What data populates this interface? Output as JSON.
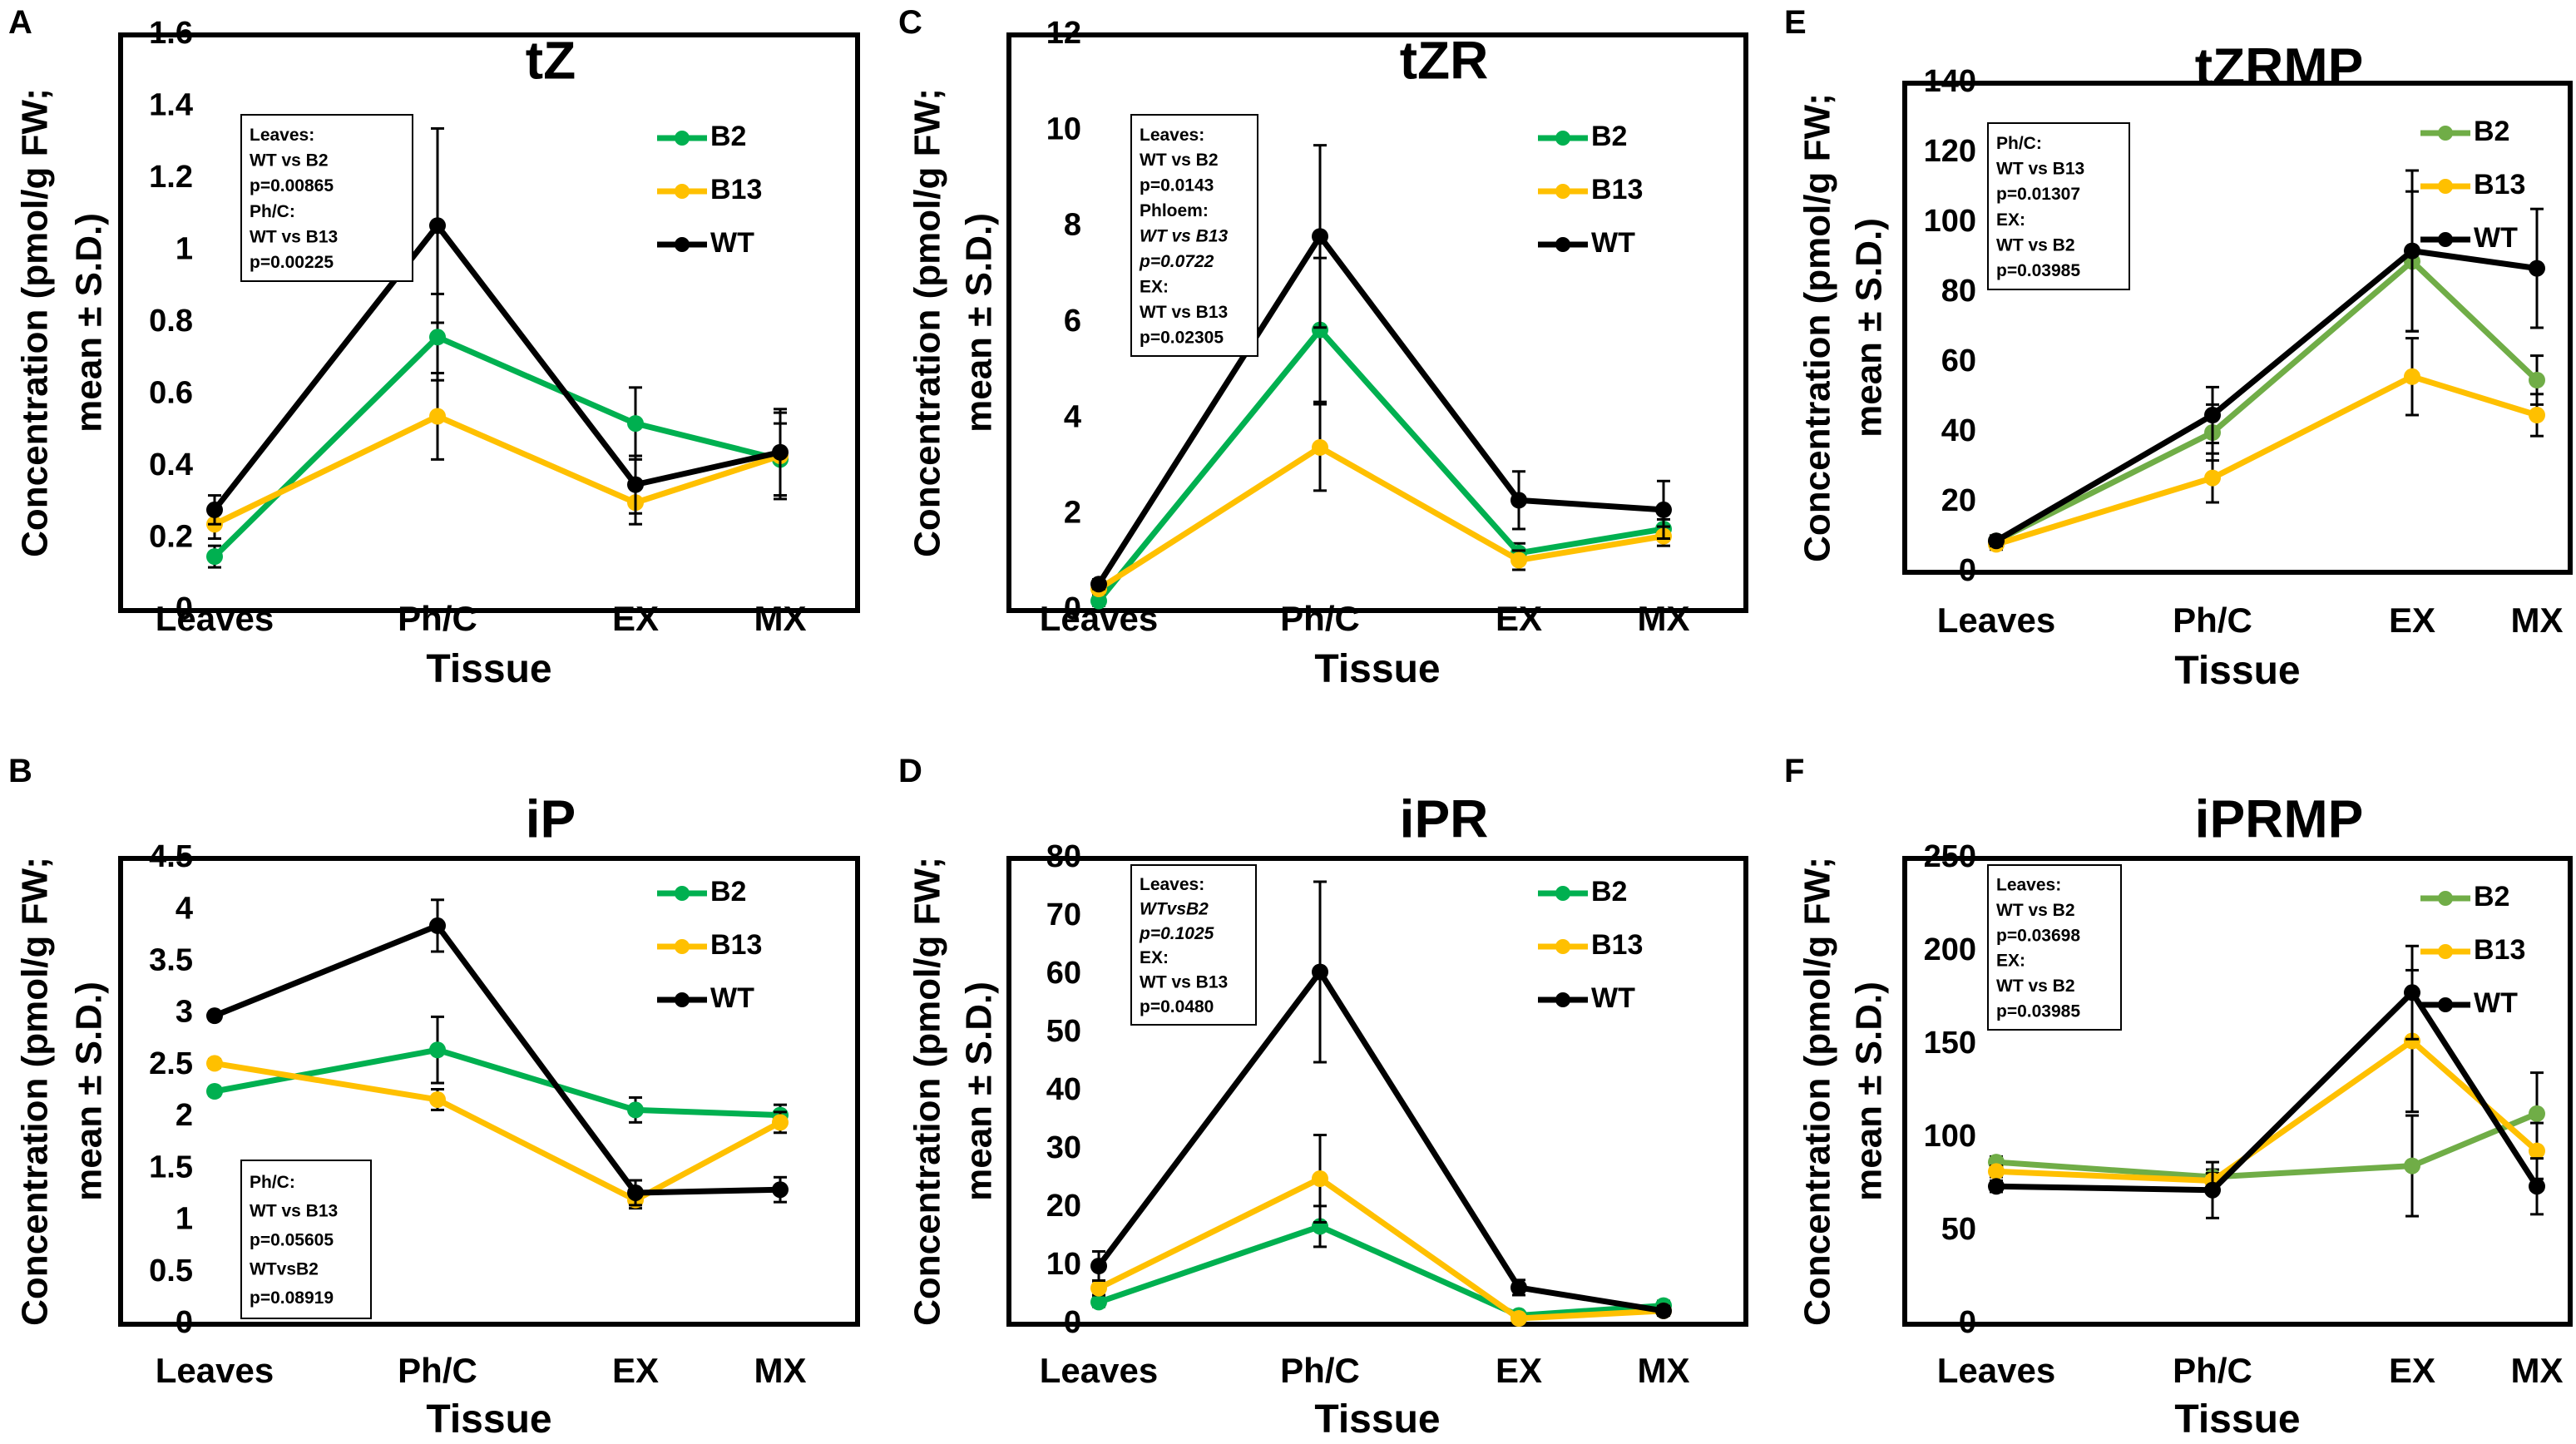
{
  "figure": {
    "colors": {
      "B2": "#00b050",
      "B13": "#ffc000",
      "WT": "#000000",
      "B2_alt": "#70ad47"
    }
  },
  "chart_data": [
    {
      "panel": "A",
      "type": "line",
      "title": "tZ",
      "xlabel": "Tissue",
      "ylabel_lines": [
        "Concentration (pmol/g FW;",
        "mean ± S.D.)"
      ],
      "categories": [
        "Leaves",
        "Ph/C",
        "EX",
        "MX"
      ],
      "ylim": [
        0,
        1.6
      ],
      "yticks": [
        0,
        0.2,
        0.4,
        0.6,
        0.8,
        1,
        1.2,
        1.4,
        1.6
      ],
      "ytick_labels": [
        "0",
        "0.2",
        "0.4",
        "0.6",
        "0.8",
        "1",
        "1.2",
        "1.4",
        "1.6"
      ],
      "series": [
        {
          "name": "B2",
          "color": "#00b050",
          "values": [
            0.15,
            0.76,
            0.52,
            0.42
          ],
          "errors": [
            0.03,
            0.12,
            0.1,
            0.1
          ]
        },
        {
          "name": "B13",
          "color": "#ffc000",
          "values": [
            0.24,
            0.54,
            0.3,
            0.43
          ],
          "errors": [
            0.04,
            0.12,
            0.06,
            0.12
          ]
        },
        {
          "name": "WT",
          "color": "#000000",
          "values": [
            0.28,
            1.07,
            0.35,
            0.44
          ],
          "errors": [
            0.04,
            0.27,
            0.08,
            0.12
          ]
        }
      ],
      "legend": [
        "B2",
        "B13",
        "WT"
      ],
      "legend_position": "top-right",
      "stats_box": [
        "Leaves:",
        "WT vs B2",
        "p=0.00865",
        "Ph/C:",
        "WT vs B13",
        "p=0.00225"
      ],
      "stats_italic": [],
      "stats_position": "top-left"
    },
    {
      "panel": "B",
      "type": "line",
      "title": "iP",
      "xlabel": "Tissue",
      "ylabel_lines": [
        "Concentration (pmol/g FW;",
        "mean ± S.D.)"
      ],
      "categories": [
        "Leaves",
        "Ph/C",
        "EX",
        "MX"
      ],
      "ylim": [
        0,
        4.5
      ],
      "yticks": [
        0,
        0.5,
        1,
        1.5,
        2,
        2.5,
        3,
        3.5,
        4,
        4.5
      ],
      "ytick_labels": [
        "0",
        "0.5",
        "1",
        "1.5",
        "2",
        "2.5",
        "3",
        "3.5",
        "4",
        "4.5"
      ],
      "series": [
        {
          "name": "B2",
          "color": "#00b050",
          "values": [
            2.25,
            2.65,
            2.07,
            2.02
          ],
          "errors": [
            0.04,
            0.32,
            0.12,
            0.1
          ]
        },
        {
          "name": "B13",
          "color": "#ffc000",
          "values": [
            2.52,
            2.17,
            1.2,
            1.95
          ],
          "errors": [
            0.04,
            0.1,
            0.08,
            0.1
          ]
        },
        {
          "name": "WT",
          "color": "#000000",
          "values": [
            2.98,
            3.85,
            1.27,
            1.3
          ],
          "errors": [
            0.04,
            0.25,
            0.12,
            0.12
          ]
        }
      ],
      "legend": [
        "B2",
        "B13",
        "WT"
      ],
      "legend_position": "top-right",
      "stats_box": [
        "Ph/C:",
        "WT vs B13",
        "p=0.05605",
        "WTvsB2",
        "p=0.08919"
      ],
      "stats_italic": [],
      "stats_position": "bottom-left"
    },
    {
      "panel": "C",
      "type": "line",
      "title": "tZR",
      "xlabel": "Tissue",
      "ylabel_lines": [
        "Concentration (pmol/g FW;",
        "mean ± S.D.)"
      ],
      "categories": [
        "Leaves",
        "Ph/C",
        "EX",
        "MX"
      ],
      "ylim": [
        0,
        12
      ],
      "yticks": [
        0,
        2,
        4,
        6,
        8,
        10,
        12
      ],
      "ytick_labels": [
        "0",
        "2",
        "4",
        "6",
        "8",
        "10",
        "12"
      ],
      "series": [
        {
          "name": "B2",
          "color": "#00b050",
          "values": [
            0.2,
            5.85,
            1.2,
            1.7
          ],
          "errors": [
            0.1,
            1.5,
            0.2,
            0.2
          ]
        },
        {
          "name": "B13",
          "color": "#ffc000",
          "values": [
            0.45,
            3.4,
            1.05,
            1.55
          ],
          "errors": [
            0.1,
            0.9,
            0.2,
            0.2
          ]
        },
        {
          "name": "WT",
          "color": "#000000",
          "values": [
            0.55,
            7.8,
            2.3,
            2.1
          ],
          "errors": [
            0.1,
            1.9,
            0.6,
            0.6
          ]
        }
      ],
      "legend": [
        "B2",
        "B13",
        "WT"
      ],
      "legend_position": "top-right",
      "stats_box": [
        "Leaves:",
        "WT vs B2",
        "p=0.0143",
        "Phloem:",
        "WT vs B13",
        "p=0.0722",
        "EX:",
        "WT vs B13",
        "p=0.02305"
      ],
      "stats_italic": [
        4,
        5
      ],
      "stats_position": "top-left"
    },
    {
      "panel": "D",
      "type": "line",
      "title": "iPR",
      "xlabel": "Tissue",
      "ylabel_lines": [
        "Concentration (pmol/g FW;",
        "mean ± S.D.)"
      ],
      "categories": [
        "Leaves",
        "Ph/C",
        "EX",
        "MX"
      ],
      "ylim": [
        0,
        80
      ],
      "yticks": [
        0,
        10,
        20,
        30,
        40,
        50,
        60,
        70,
        80
      ],
      "ytick_labels": [
        "0",
        "10",
        "20",
        "30",
        "40",
        "50",
        "60",
        "70",
        "80"
      ],
      "series": [
        {
          "name": "B2",
          "color": "#00b050",
          "values": [
            3.8,
            16.8,
            1.5,
            3.2
          ],
          "errors": [
            0.8,
            3.5,
            0.6,
            0.8
          ]
        },
        {
          "name": "B13",
          "color": "#ffc000",
          "values": [
            6.2,
            25,
            1,
            2.3
          ],
          "errors": [
            1.2,
            7.5,
            0.5,
            0.8
          ]
        },
        {
          "name": "WT",
          "color": "#000000",
          "values": [
            10,
            60.5,
            6.3,
            2.3
          ],
          "errors": [
            2.5,
            15.5,
            1.3,
            0.8
          ]
        }
      ],
      "legend": [
        "B2",
        "B13",
        "WT"
      ],
      "legend_position": "top-right",
      "stats_box": [
        "Leaves:",
        "WTvsB2",
        "p=0.1025",
        "EX:",
        "WT vs B13",
        "p=0.0480"
      ],
      "stats_italic": [
        1,
        2
      ],
      "stats_position": "top-left"
    },
    {
      "panel": "E",
      "type": "line",
      "title": "tZRMP",
      "xlabel": "Tissue",
      "ylabel_lines": [
        "Concentration (pmol/g FW;",
        "mean ± S.D.)"
      ],
      "categories": [
        "Leaves",
        "Ph/C",
        "EX",
        "MX"
      ],
      "ylim": [
        0,
        140
      ],
      "yticks": [
        0,
        20,
        40,
        60,
        80,
        100,
        120,
        140
      ],
      "ytick_labels": [
        "0",
        "20",
        "40",
        "60",
        "80",
        "100",
        "120",
        "140"
      ],
      "series": [
        {
          "name": "B2",
          "color": "#70ad47",
          "values": [
            9,
            40,
            89,
            55
          ],
          "errors": [
            1.5,
            8,
            20,
            7
          ]
        },
        {
          "name": "B13",
          "color": "#ffc000",
          "values": [
            8,
            27,
            56,
            45
          ],
          "errors": [
            1.5,
            7,
            11,
            6
          ]
        },
        {
          "name": "WT",
          "color": "#000000",
          "values": [
            9,
            45,
            92,
            87
          ],
          "errors": [
            1.5,
            8,
            23,
            17
          ]
        }
      ],
      "legend": [
        "B2",
        "B13",
        "WT"
      ],
      "legend_position": "top-right",
      "stats_box": [
        "Ph/C:",
        "WT vs B13",
        "p=0.01307",
        "EX:",
        "WT vs B2",
        "p=0.03985"
      ],
      "stats_italic": [],
      "stats_position": "top-left"
    },
    {
      "panel": "F",
      "type": "line",
      "title": "iPRMP",
      "xlabel": "Tissue",
      "ylabel_lines": [
        "Concentration (pmol/g FW;",
        "mean ± S.D.)"
      ],
      "categories": [
        "Leaves",
        "Ph/C",
        "EX",
        "MX"
      ],
      "ylim": [
        0,
        250
      ],
      "yticks": [
        0,
        50,
        100,
        150,
        200,
        250
      ],
      "ytick_labels": [
        "0",
        "50",
        "100",
        "150",
        "200",
        "250"
      ],
      "series": [
        {
          "name": "B2",
          "color": "#70ad47",
          "values": [
            87,
            79,
            85,
            113
          ],
          "errors": [
            3,
            4,
            27,
            22
          ]
        },
        {
          "name": "B13",
          "color": "#ffc000",
          "values": [
            82,
            77,
            152,
            93
          ],
          "errors": [
            3,
            4,
            38,
            15
          ]
        },
        {
          "name": "WT",
          "color": "#000000",
          "values": [
            74,
            72,
            178,
            74
          ],
          "errors": [
            3,
            15,
            25,
            15
          ]
        }
      ],
      "legend": [
        "B2",
        "B13",
        "WT"
      ],
      "legend_position": "top-right",
      "stats_box": [
        "Leaves:",
        "WT vs B2",
        "p=0.03698",
        "EX:",
        "WT vs B2",
        "p=0.03985"
      ],
      "stats_italic": [],
      "stats_position": "top-left"
    }
  ]
}
